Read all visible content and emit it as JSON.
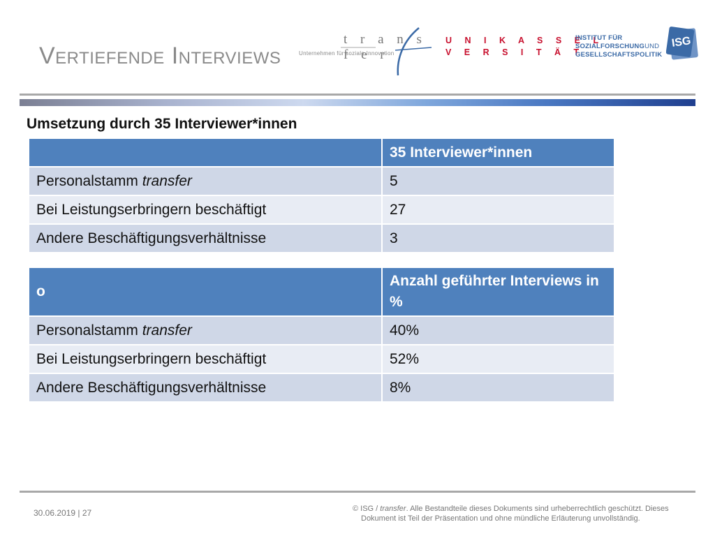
{
  "slide": {
    "title": "Vertiefende Interviews",
    "section_heading": "Umsetzung durch 35 Interviewer*innen"
  },
  "logos": {
    "transfer": {
      "word": "t r a n s f e r",
      "tagline": "Unternehmen für soziale Innovation"
    },
    "uni_kassel": {
      "row1": "U N I K A S S E L",
      "row2": "V E R S I T Ä T"
    },
    "institut": {
      "line1": "INSTITUT FÜR",
      "line2a": "SOZIALFORSCHUNG",
      "line2b": "UND",
      "line3": "GESELLSCHAFTSPOLITIK"
    },
    "isg": {
      "text": "ISG"
    }
  },
  "colors": {
    "header_blue": "#4f81bd",
    "row_odd": "#cfd7e7",
    "row_even": "#e8ecf4",
    "title_gray": "#8a8a8a"
  },
  "table1": {
    "header": [
      "",
      "35 Interviewer*innen"
    ],
    "rows": [
      {
        "label_main": "Personalstamm ",
        "label_italic": "transfer",
        "value": "5"
      },
      {
        "label_main": "Bei Leistungserbringern beschäftigt",
        "label_italic": "",
        "value": "27"
      },
      {
        "label_main": "Andere Beschäftigungsverhältnisse",
        "label_italic": "",
        "value": "3"
      }
    ]
  },
  "table2": {
    "header": [
      "o",
      "Anzahl geführter Interviews in %"
    ],
    "rows": [
      {
        "label_main": "Personalstamm ",
        "label_italic": "transfer",
        "value": "40%"
      },
      {
        "label_main": "Bei Leistungserbringern beschäftigt",
        "label_italic": "",
        "value": "52%"
      },
      {
        "label_main": "Andere Beschäftigungsverhältnisse",
        "label_italic": "",
        "value": "8%"
      }
    ]
  },
  "footer": {
    "date_page": "30.06.2019 | 27",
    "copyright_prefix": "©  ISG / ",
    "copyright_italic": "transfer",
    "copyright_line1": ". Alle Bestandteile dieses Dokuments sind urheberrechtlich geschützt. Dieses",
    "copyright_line2": "Dokument ist Teil der Präsentation und ohne mündliche Erläuterung unvollständig."
  }
}
